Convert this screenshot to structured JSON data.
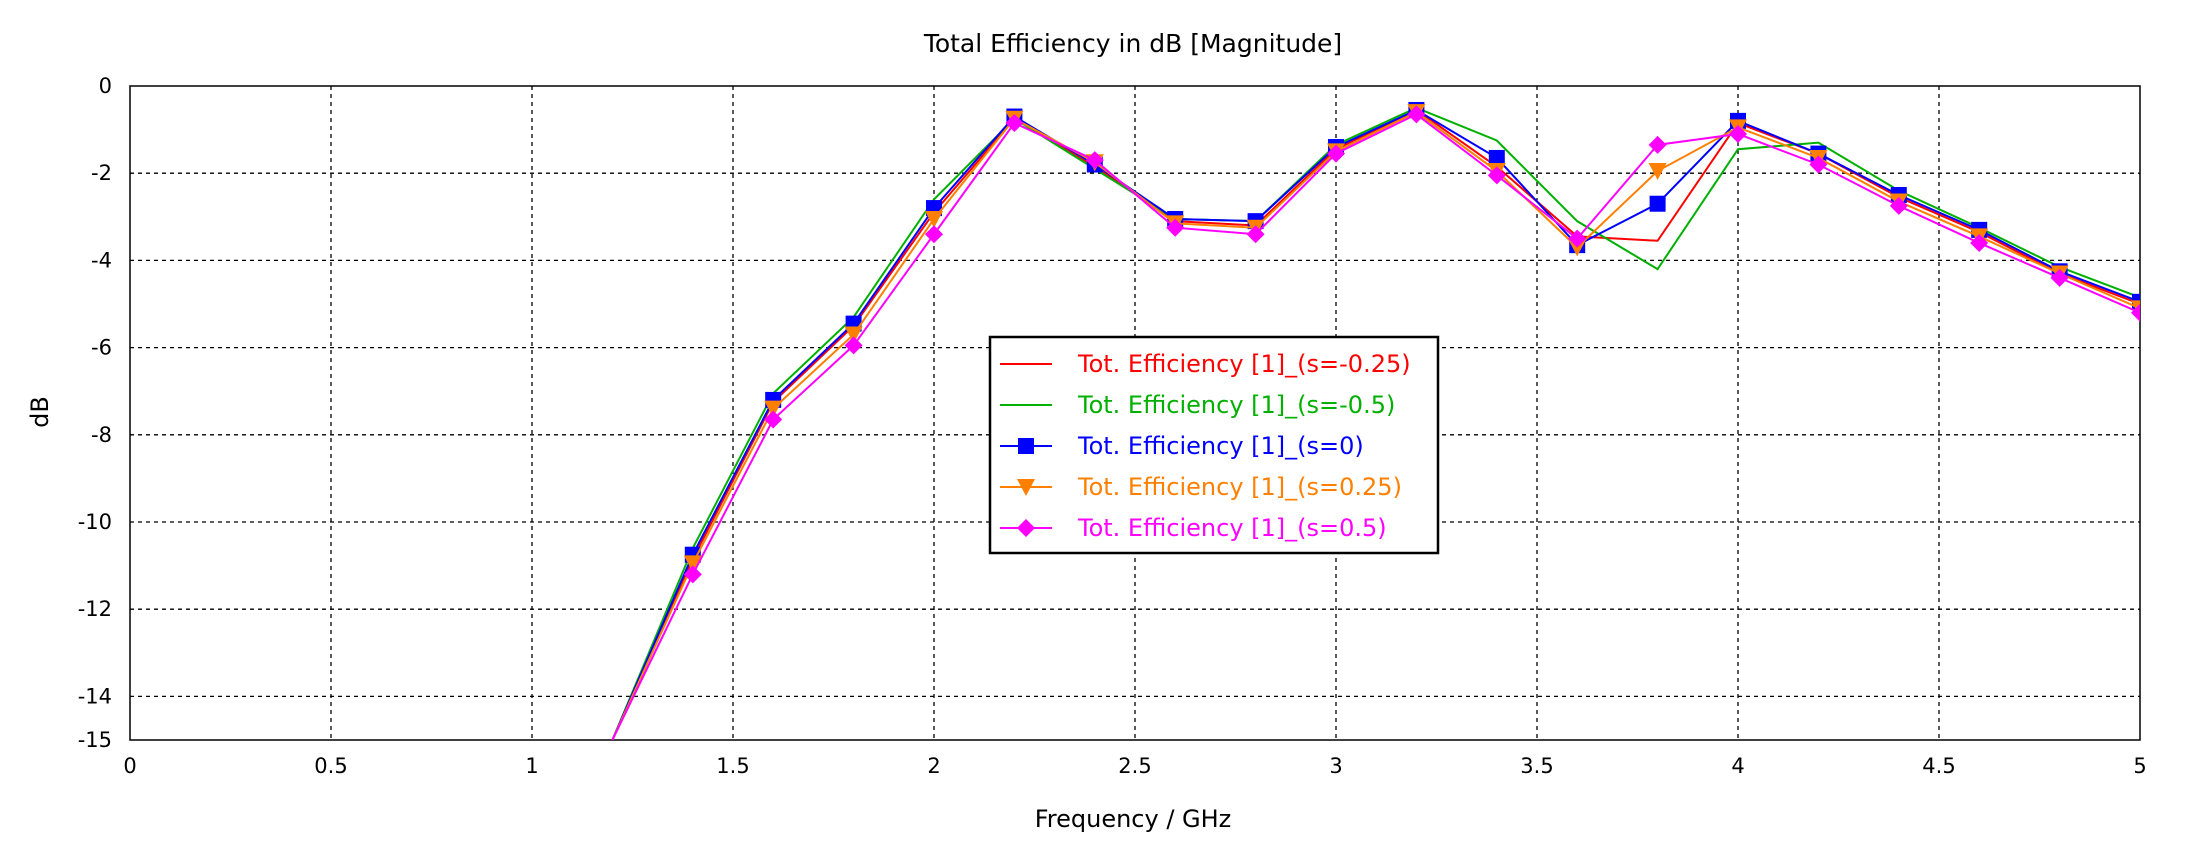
{
  "chart_data": {
    "type": "line",
    "title": "Total Efficiency in dB [Magnitude]",
    "xlabel": "Frequency / GHz",
    "ylabel": "dB",
    "xlim": [
      0,
      5
    ],
    "ylim": [
      -15,
      0
    ],
    "xticks": [
      "0",
      "0.5",
      "1",
      "1.5",
      "2",
      "2.5",
      "3",
      "3.5",
      "4",
      "4.5",
      "5"
    ],
    "xtick_values": [
      0,
      0.5,
      1,
      1.5,
      2,
      2.5,
      3,
      3.5,
      4,
      4.5,
      5
    ],
    "yticks": [
      "0",
      "-2",
      "-4",
      "-6",
      "-8",
      "-10",
      "-12",
      "-14",
      "-15"
    ],
    "ytick_values": [
      0,
      -2,
      -4,
      -6,
      -8,
      -10,
      -12,
      -14,
      -15
    ],
    "grid": true,
    "legend_position": "center",
    "x": [
      1.2,
      1.4,
      1.6,
      1.8,
      2.0,
      2.2,
      2.4,
      2.6,
      2.8,
      3.0,
      3.2,
      3.4,
      3.6,
      3.8,
      4.0,
      4.2,
      4.4,
      4.6,
      4.8,
      5.0
    ],
    "series": [
      {
        "name": "Tot. Efficiency [1]_(s=-0.25)",
        "color": "#ff0000",
        "marker": "none",
        "values": [
          -15.0,
          -10.85,
          -7.25,
          -5.5,
          -2.9,
          -0.75,
          -1.85,
          -3.1,
          -3.2,
          -1.45,
          -0.55,
          -1.85,
          -3.45,
          -3.55,
          -0.85,
          -1.55,
          -2.55,
          -3.35,
          -4.3,
          -5.0
        ]
      },
      {
        "name": "Tot. Efficiency [1]_(s=-0.5)",
        "color": "#00b000",
        "marker": "none",
        "values": [
          -15.0,
          -10.6,
          -7.05,
          -5.3,
          -2.6,
          -0.75,
          -1.9,
          -3.05,
          -3.1,
          -1.35,
          -0.5,
          -1.25,
          -3.1,
          -4.2,
          -1.45,
          -1.3,
          -2.4,
          -3.25,
          -4.15,
          -4.85
        ]
      },
      {
        "name": "Tot. Efficiency [1]_(s=0)",
        "color": "#0000ff",
        "marker": "square",
        "values": [
          -15.0,
          -10.75,
          -7.2,
          -5.45,
          -2.8,
          -0.7,
          -1.8,
          -3.05,
          -3.1,
          -1.4,
          -0.55,
          -1.65,
          -3.65,
          -2.7,
          -0.8,
          -1.55,
          -2.5,
          -3.3,
          -4.25,
          -4.95
        ]
      },
      {
        "name": "Tot. Efficiency [1]_(s=0.25)",
        "color": "#ff8000",
        "marker": "triangle-down",
        "values": [
          -15.0,
          -10.95,
          -7.4,
          -5.7,
          -3.05,
          -0.75,
          -1.75,
          -3.15,
          -3.25,
          -1.5,
          -0.6,
          -1.95,
          -3.7,
          -1.95,
          -0.95,
          -1.65,
          -2.65,
          -3.45,
          -4.3,
          -5.1
        ]
      },
      {
        "name": "Tot. Efficiency [1]_(s=0.5)",
        "color": "#ff00ff",
        "marker": "diamond",
        "values": [
          -15.0,
          -11.2,
          -7.65,
          -5.95,
          -3.4,
          -0.85,
          -1.7,
          -3.25,
          -3.4,
          -1.55,
          -0.65,
          -2.05,
          -3.5,
          -1.35,
          -1.1,
          -1.8,
          -2.75,
          -3.6,
          -4.4,
          -5.2
        ]
      }
    ]
  }
}
